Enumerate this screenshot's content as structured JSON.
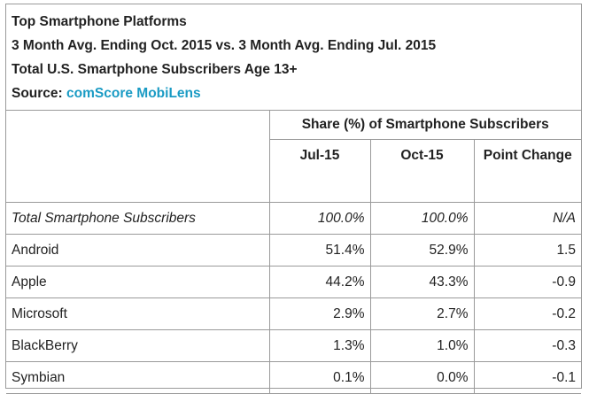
{
  "header": {
    "lines": [
      "Top Smartphone Platforms",
      "3 Month Avg. Ending Oct. 2015 vs. 3 Month Avg. Ending Jul. 2015",
      "Total U.S. Smartphone Subscribers Age 13+"
    ],
    "source_label": "Source:",
    "source_name": "comScore MobiLens"
  },
  "table": {
    "group_header": "Share (%) of Smartphone Subscribers",
    "columns": [
      "Jul-15",
      "Oct-15",
      "Point Change"
    ],
    "rows": [
      [
        "Total Smartphone Subscribers",
        "100.0%",
        "100.0%",
        "N/A"
      ],
      [
        "Android",
        "51.4%",
        "52.9%",
        "1.5"
      ],
      [
        "Apple",
        "44.2%",
        "43.3%",
        "-0.9"
      ],
      [
        "Microsoft",
        "2.9%",
        "2.7%",
        "-0.2"
      ],
      [
        "BlackBerry",
        "1.3%",
        "1.0%",
        "-0.3"
      ],
      [
        "Symbian",
        "0.1%",
        "0.0%",
        "-0.1"
      ]
    ]
  }
}
